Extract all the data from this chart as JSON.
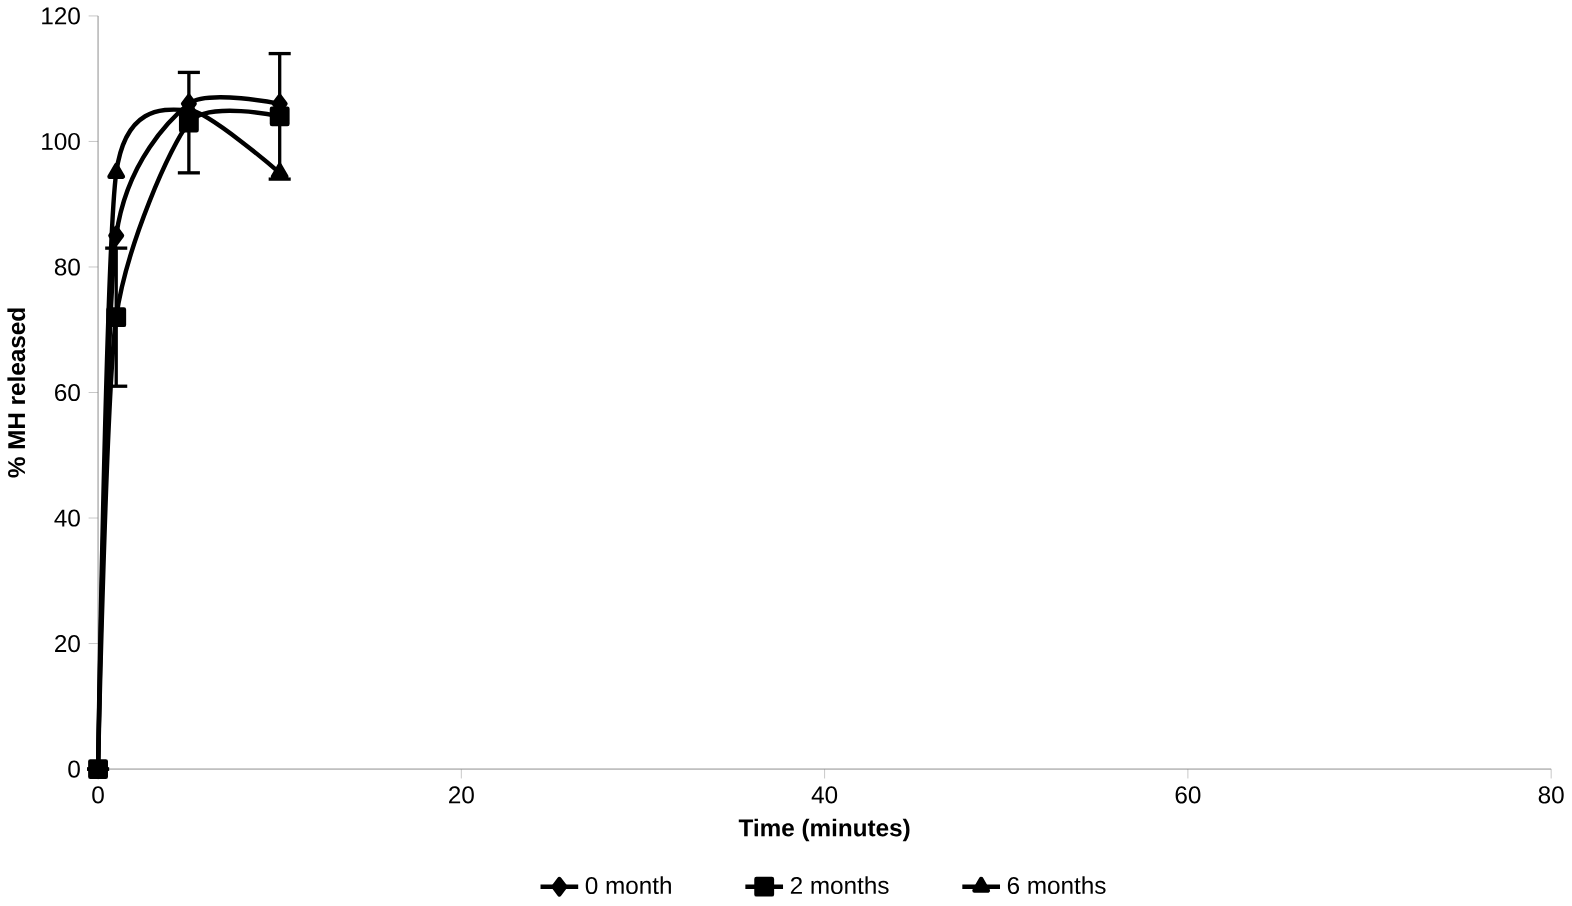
{
  "chart_data": {
    "type": "line",
    "xlabel": "Time (minutes)",
    "ylabel": "% MH released",
    "x": [
      0,
      1,
      5,
      10
    ],
    "series": [
      {
        "name": "0 month",
        "color": "#000000",
        "values": [
          0,
          85,
          106,
          106
        ],
        "marker": "diamond"
      },
      {
        "name": "2 months",
        "color": "#000000",
        "values": [
          0,
          72,
          103,
          104
        ],
        "marker": "square",
        "errors": [
          null,
          11,
          8,
          10
        ]
      },
      {
        "name": "6 months",
        "color": "#000000",
        "values": [
          0,
          95,
          105,
          95
        ],
        "marker": "triangle"
      }
    ],
    "xlim": [
      0,
      80
    ],
    "xticks": [
      0,
      20,
      40,
      60,
      80
    ],
    "ylim": [
      0,
      120
    ],
    "yticks": [
      0,
      20,
      40,
      60,
      80,
      100,
      120
    ],
    "legend": "bottom",
    "grid": false,
    "line_style": "solid"
  }
}
